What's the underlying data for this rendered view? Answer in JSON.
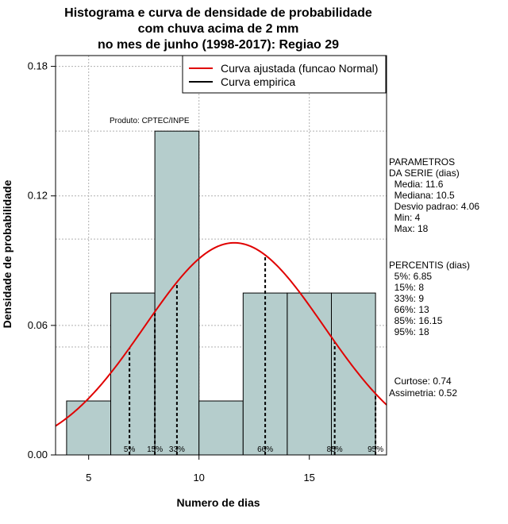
{
  "chart_data": {
    "type": "histogram",
    "title_lines": [
      "Histograma e curva de densidade de probabilidade",
      "com chuva acima de 2 mm",
      "no mes de junho (1998-2017): Regiao 29"
    ],
    "xlabel": "Numero de dias",
    "ylabel": "Densidade de probabilidade",
    "xlim": [
      3.5,
      18.5
    ],
    "ylim": [
      0,
      0.185
    ],
    "x_ticks": [
      5,
      10,
      15
    ],
    "y_ticks": [
      0.0,
      0.06,
      0.12,
      0.18
    ],
    "x_tick_labels": [
      "5",
      "10",
      "15"
    ],
    "y_tick_labels": [
      "0.00",
      "0.06",
      "0.12",
      "0.18"
    ],
    "grid": true,
    "bins": [
      {
        "x0": 4,
        "x1": 6,
        "density": 0.025
      },
      {
        "x0": 6,
        "x1": 8,
        "density": 0.075
      },
      {
        "x0": 8,
        "x1": 10,
        "density": 0.15
      },
      {
        "x0": 10,
        "x1": 12,
        "density": 0.025
      },
      {
        "x0": 12,
        "x1": 14,
        "density": 0.075
      },
      {
        "x0": 14,
        "x1": 16,
        "density": 0.075
      },
      {
        "x0": 16,
        "x1": 18,
        "density": 0.075
      }
    ],
    "bar_color": "#b5cdcc",
    "normal_curve": {
      "mean": 11.6,
      "sd": 4.06,
      "color": "#e00000"
    },
    "empirical_curve_color": "#000000",
    "percentile_lines": [
      {
        "label": "5%",
        "x": 6.85
      },
      {
        "label": "15%",
        "x": 8
      },
      {
        "label": "33%",
        "x": 9
      },
      {
        "label": "66%",
        "x": 13
      },
      {
        "label": "85%",
        "x": 16.15
      },
      {
        "label": "95%",
        "x": 18
      }
    ],
    "legend": {
      "position": "top-right",
      "entries": [
        {
          "label": "Curva ajustada (funcao Normal)",
          "color": "#e00000"
        },
        {
          "label": "Curva empirica",
          "color": "#000000"
        }
      ]
    },
    "annotation": "Produto: CPTEC/INPE",
    "stats_block": [
      "PARAMETROS",
      "DA SERIE (dias)",
      "  Media: 11.6",
      "  Mediana: 10.5",
      "  Desvio padrao: 4.06",
      "  Min: 4",
      "  Max: 18"
    ],
    "percentis_block": [
      "PERCENTIS (dias)",
      "  5%: 6.85",
      "  15%: 8",
      "  33%: 9",
      "  66%: 13",
      "  85%: 16.15",
      "  95%: 18"
    ],
    "shape_block": [
      "  Curtose: 0.74",
      "Assimetria: 0.52"
    ]
  }
}
